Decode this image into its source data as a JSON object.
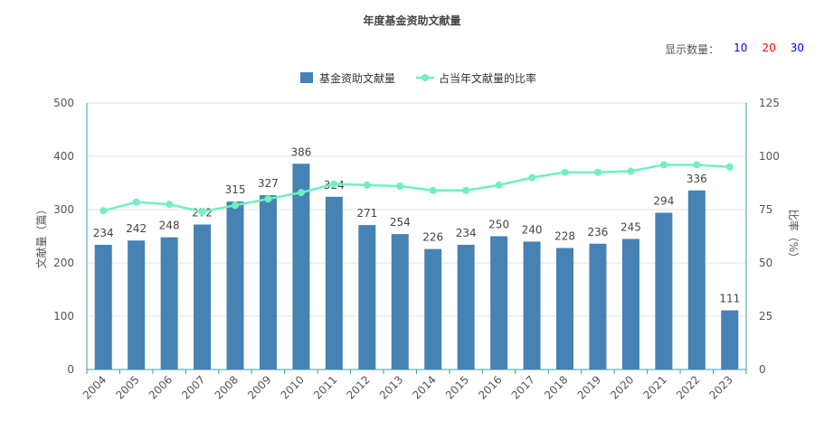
{
  "title": "年度基金资助文献量",
  "display_count": {
    "label": "显示数量：",
    "options": [
      {
        "value": "10",
        "color": "#0000ff"
      },
      {
        "value": "20",
        "color": "#ff0000"
      },
      {
        "value": "30",
        "color": "#0000ff"
      }
    ]
  },
  "chart_data": {
    "type": "bar",
    "categories": [
      "2004",
      "2005",
      "2006",
      "2007",
      "2008",
      "2009",
      "2010",
      "2011",
      "2012",
      "2013",
      "2014",
      "2015",
      "2016",
      "2017",
      "2018",
      "2019",
      "2020",
      "2021",
      "2022",
      "2023"
    ],
    "series": [
      {
        "name": "基金资助文献量",
        "type": "bar",
        "axis": "left",
        "color": "#4682b4",
        "values": [
          234,
          242,
          248,
          272,
          315,
          327,
          386,
          324,
          271,
          254,
          226,
          234,
          250,
          240,
          228,
          236,
          245,
          294,
          336,
          111
        ]
      },
      {
        "name": "占当年文献量的比率",
        "type": "line",
        "axis": "right",
        "color": "#6ff0c0",
        "values": [
          74.5,
          78.5,
          77.5,
          74,
          77,
          80,
          83,
          87,
          86.5,
          86,
          84,
          84,
          86.5,
          90,
          92.5,
          92.5,
          93,
          96,
          96,
          95
        ]
      }
    ],
    "y_left": {
      "label": "文献量（篇）",
      "lim": [
        0,
        500
      ],
      "ticks": [
        0,
        100,
        200,
        300,
        400,
        500
      ]
    },
    "y_right": {
      "label": "比率（%）",
      "lim": [
        0,
        125
      ],
      "ticks": [
        0,
        25,
        50,
        75,
        100,
        125
      ]
    },
    "legend": "top-center",
    "grid": true
  }
}
